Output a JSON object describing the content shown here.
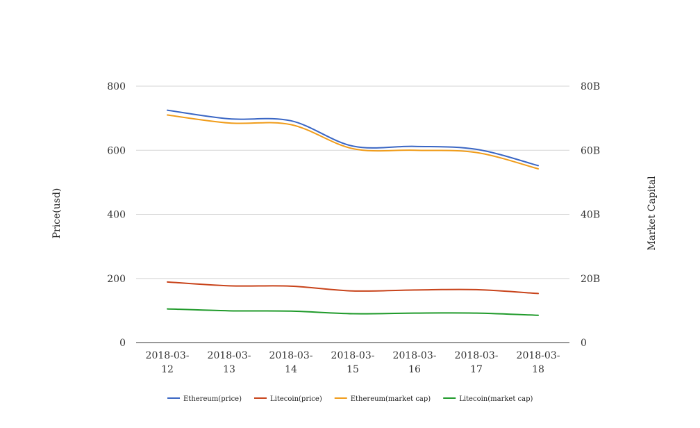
{
  "chart_data": {
    "type": "line",
    "title": "",
    "ylabel": "Price(usd)",
    "y2label": "Market Capital",
    "ylim": [
      0,
      800
    ],
    "y2lim": [
      0,
      80000000000
    ],
    "yticks": [
      "0",
      "200",
      "400",
      "600",
      "800"
    ],
    "y2ticks": [
      "0",
      "20B",
      "40B",
      "60B",
      "80B"
    ],
    "grid": true,
    "legend_position": "bottom",
    "categories": [
      "2018-03-12",
      "2018-03-13",
      "2018-03-14",
      "2018-03-15",
      "2018-03-16",
      "2018-03-17",
      "2018-03-18"
    ],
    "series": [
      {
        "name": "Ethereum(price)",
        "axis": "left",
        "color": "#3a66c4",
        "values": [
          725,
          698,
          692,
          613,
          612,
          603,
          552
        ]
      },
      {
        "name": "Litecoin(price)",
        "axis": "left",
        "color": "#c8431a",
        "values": [
          189,
          177,
          176,
          161,
          164,
          165,
          153
        ]
      },
      {
        "name": "Ethereum(market cap)",
        "axis": "right",
        "color": "#f09c1a",
        "values": [
          71000000000,
          68500000000,
          68000000000,
          60500000000,
          60000000000,
          59300000000,
          54200000000
        ]
      },
      {
        "name": "Litecoin(market cap)",
        "axis": "right",
        "color": "#1f9a2a",
        "values": [
          10500000000,
          9900000000,
          9800000000,
          9000000000,
          9200000000,
          9200000000,
          8500000000
        ]
      }
    ]
  }
}
